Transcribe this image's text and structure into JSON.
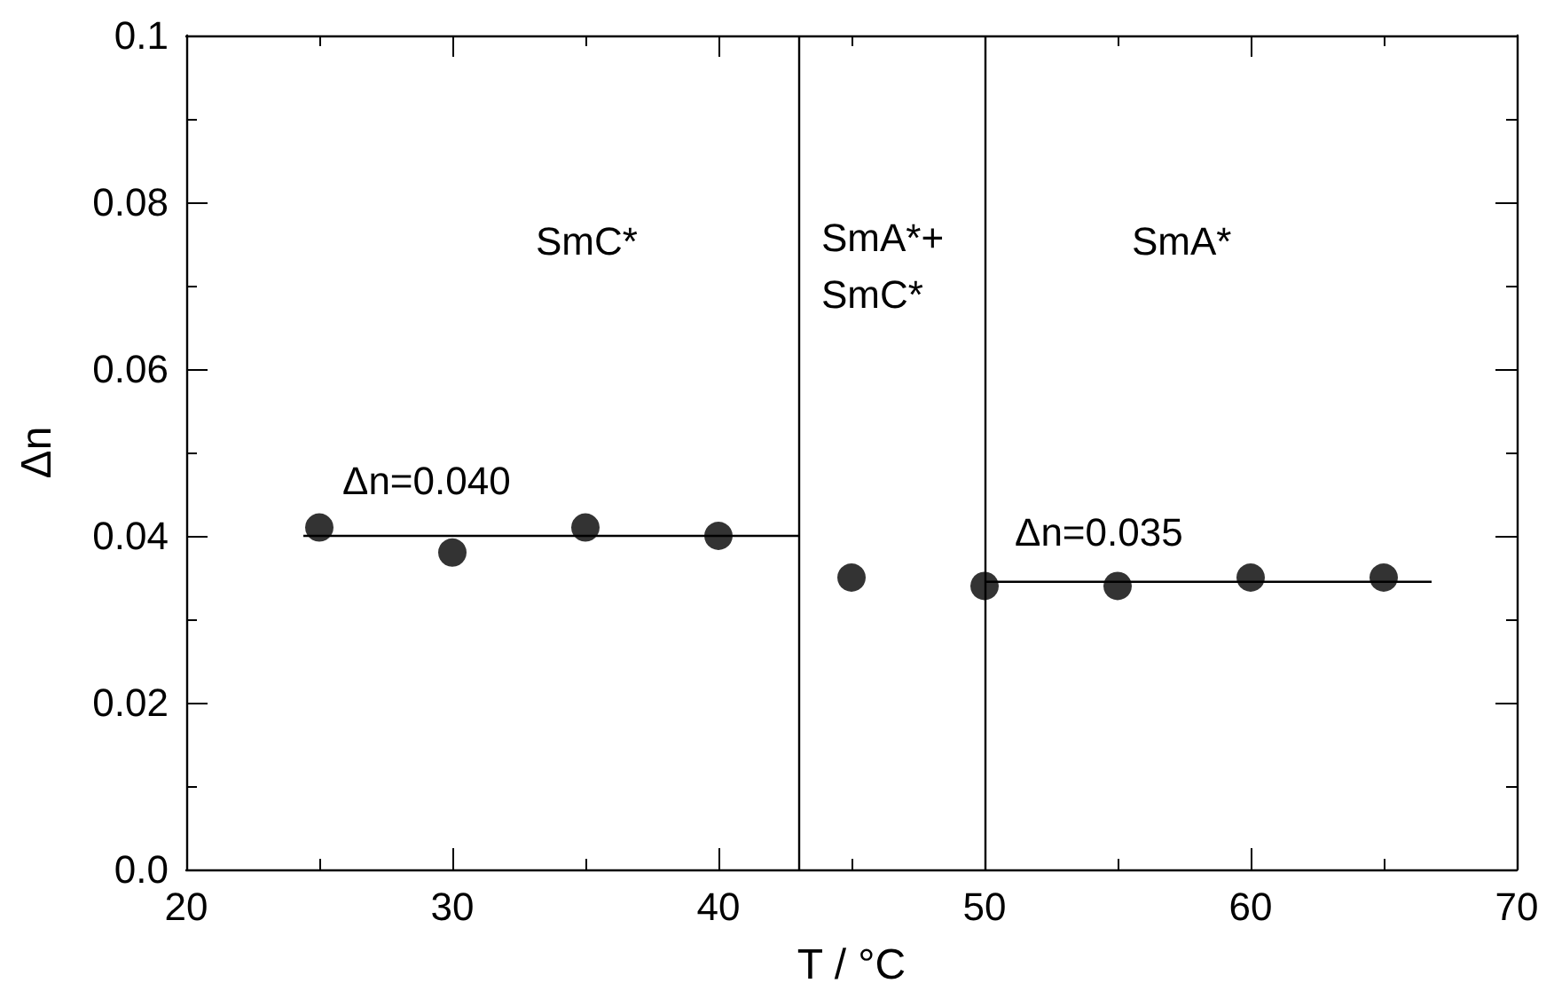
{
  "chart_data": {
    "type": "scatter",
    "xlabel": "T / °C",
    "ylabel": "Δn",
    "xlim": [
      20,
      70
    ],
    "xticks": [
      20,
      30,
      40,
      50,
      60,
      70
    ],
    "ylim": [
      0,
      0.1
    ],
    "yticks": [
      {
        "value": 0,
        "label": "0.0"
      },
      0.02,
      0.04,
      0.06,
      0.08,
      0.1
    ],
    "grid": false,
    "series": [
      {
        "marker": "circle",
        "color": "#000000",
        "x": [
          25,
          30,
          35,
          40,
          45,
          50,
          55,
          60,
          65
        ],
        "values": [
          0.041,
          0.038,
          0.041,
          0.04,
          0.035,
          0.034,
          0.034,
          0.035,
          0.035
        ]
      },
      {
        "type": "line",
        "marker": "none",
        "color": "#000000",
        "x": [
          24.4,
          43
        ],
        "values": [
          0.04,
          0.04
        ]
      },
      {
        "type": "line",
        "marker": "none",
        "color": "#000000",
        "x": [
          50,
          66.8
        ],
        "values": [
          0.0345,
          0.0345
        ]
      }
    ],
    "ref_lines": [
      {
        "axis": "x",
        "value": 43,
        "color": "#000000"
      },
      {
        "axis": "x",
        "value": 50,
        "color": "#000000"
      }
    ],
    "annotations": [
      "SmC*",
      "SmA*+\nSmC*",
      "SmA*",
      "Δn=0.040",
      "Δn=0.035"
    ]
  }
}
